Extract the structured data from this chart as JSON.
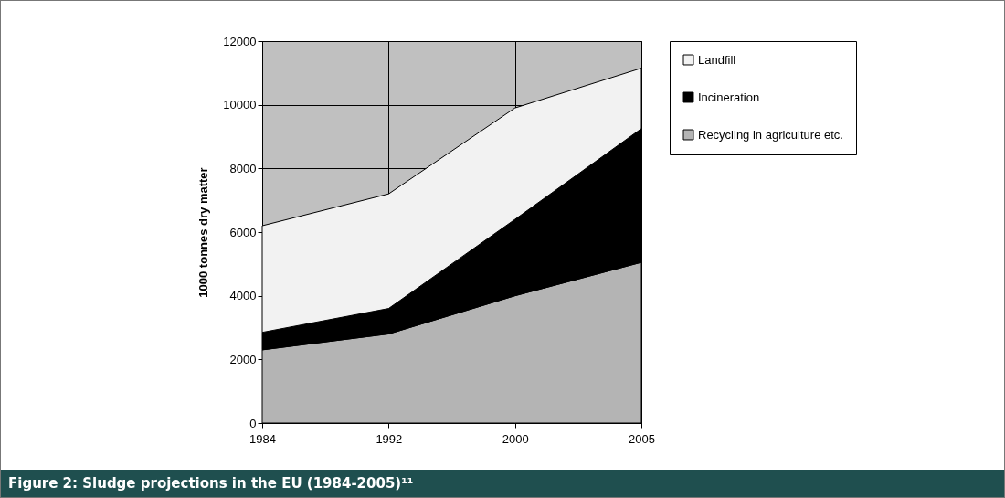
{
  "chart_data": {
    "type": "area",
    "title": "Figure 2: Sludge projections in the EU (1984-2005)¹¹",
    "ylabel": "1000 tonnes dry matter",
    "categories": [
      "1984",
      "1992",
      "2000",
      "2005"
    ],
    "stacked": true,
    "ylim": [
      0,
      12000
    ],
    "yticks": [
      0,
      2000,
      4000,
      6000,
      8000,
      10000,
      12000
    ],
    "grid": true,
    "legend": "right",
    "series": [
      {
        "name": "Recycling in agriculture etc.",
        "color": "#b4b4b4",
        "values": [
          2300,
          2800,
          4000,
          5050
        ]
      },
      {
        "name": "Incineration",
        "color": "#000000",
        "values": [
          550,
          800,
          2400,
          4200
        ]
      },
      {
        "name": "Landfill",
        "color": "#f2f2f2",
        "values": [
          3350,
          3600,
          3500,
          1900
        ]
      }
    ]
  }
}
